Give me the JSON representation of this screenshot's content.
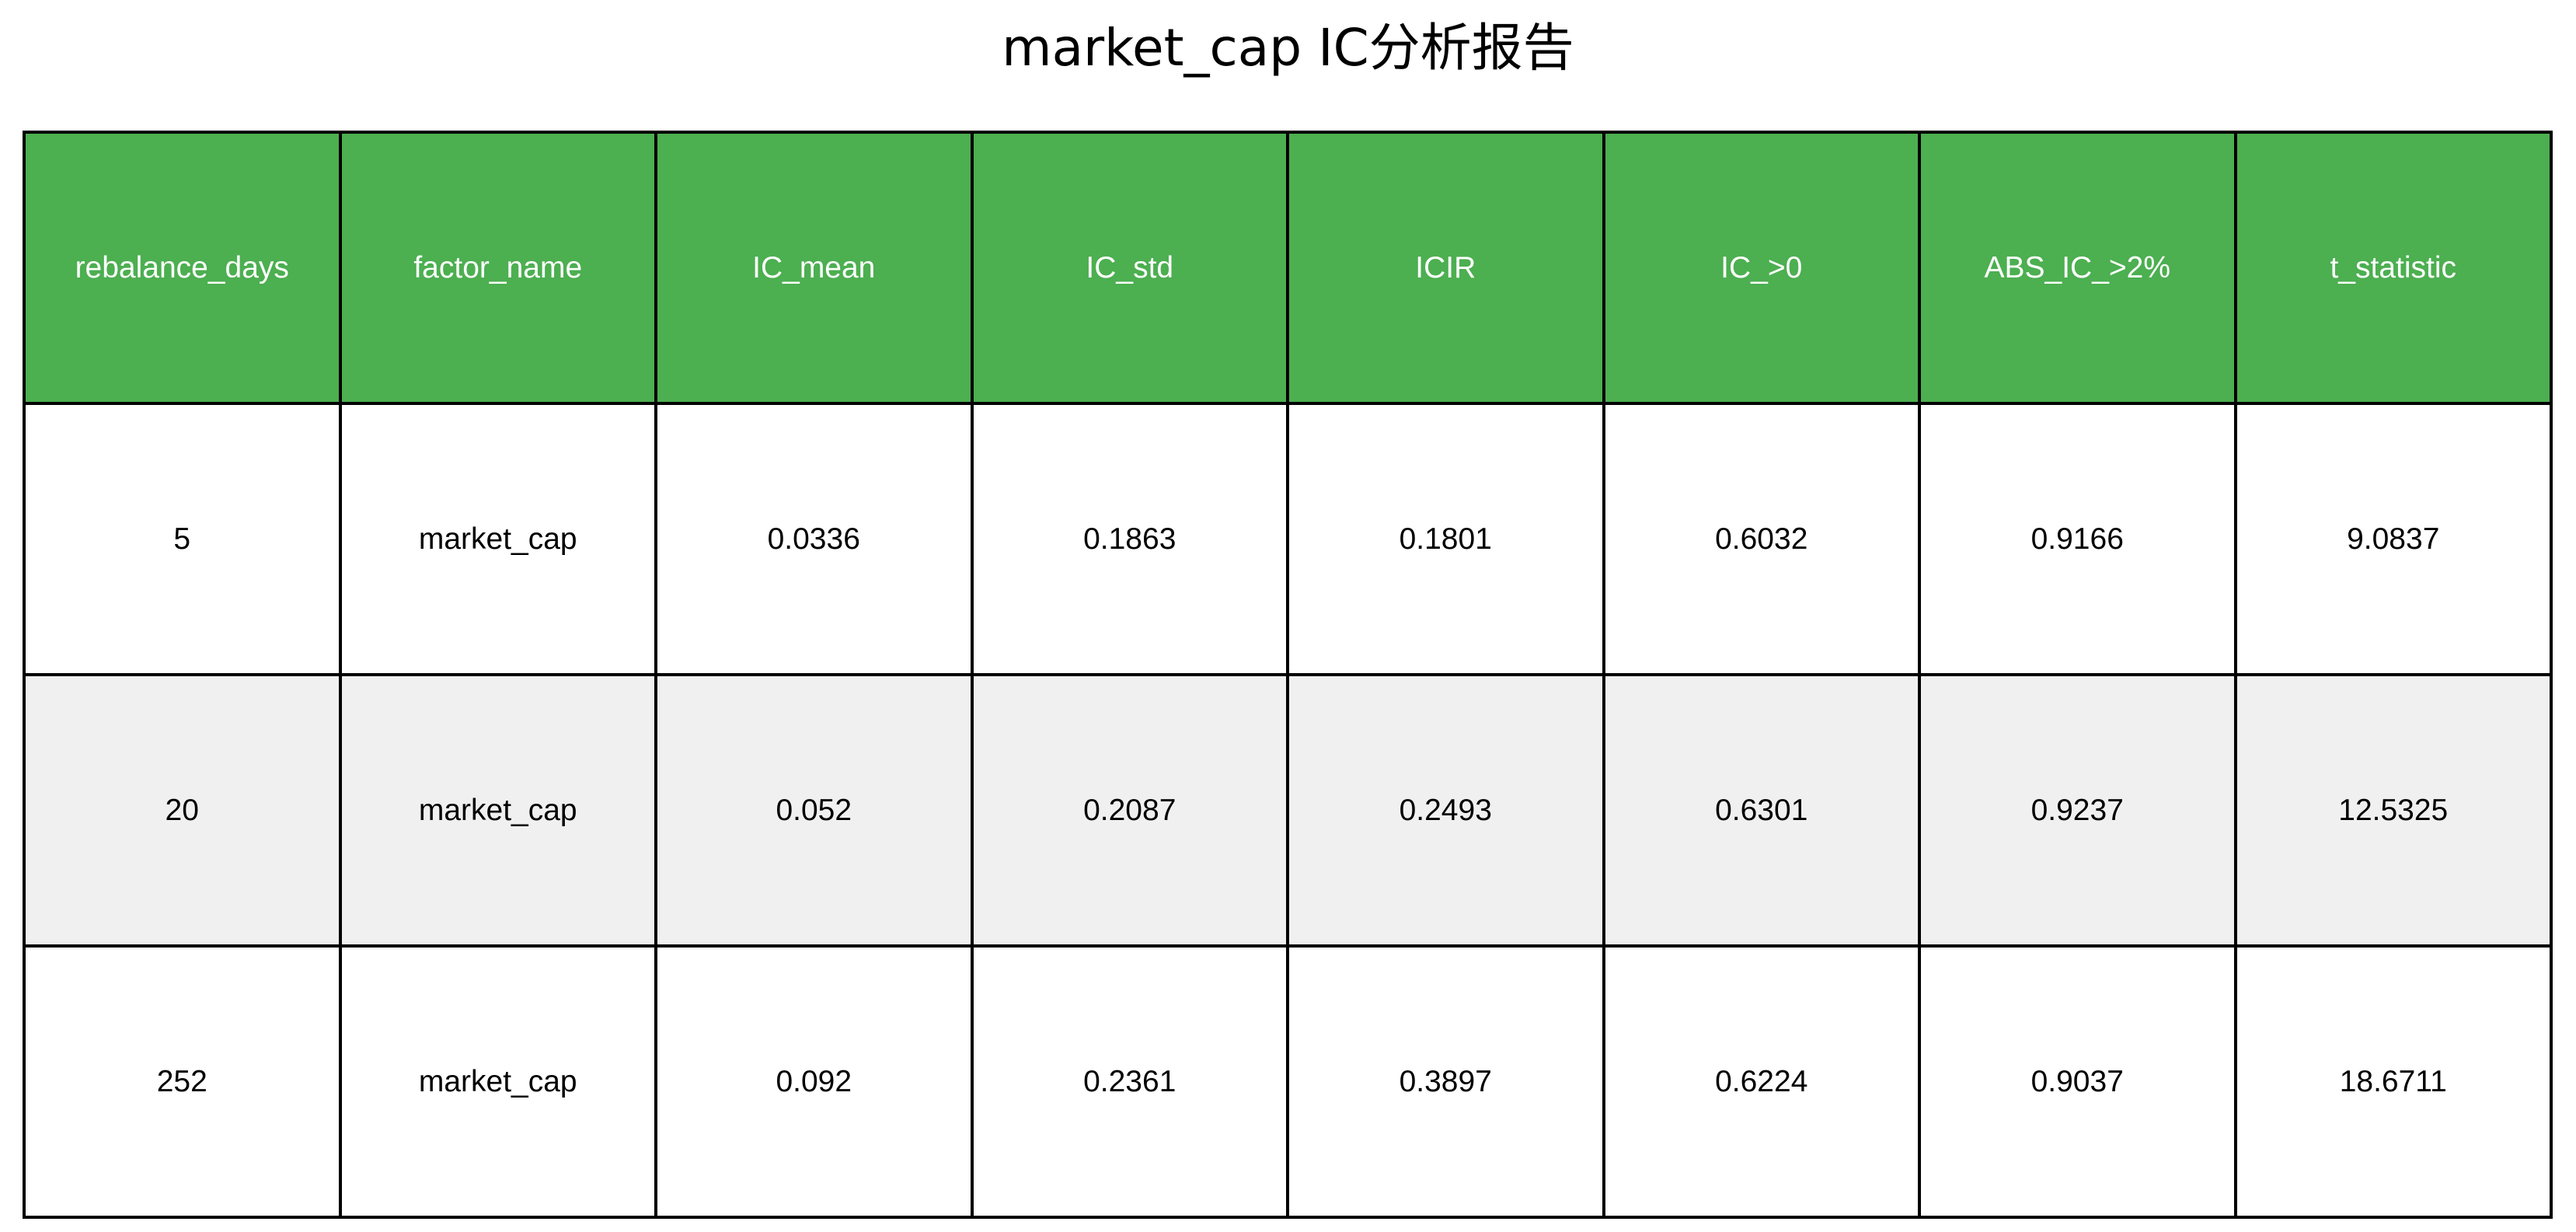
{
  "title": "market_cap IC分析报告",
  "colors": {
    "header_bg": "#4caf50",
    "header_text": "#ffffff",
    "row_alt_bg": "#f0f0f0",
    "row_bg": "#ffffff",
    "border": "#000000"
  },
  "chart_data": {
    "type": "table",
    "title": "market_cap IC分析报告",
    "columns": [
      "rebalance_days",
      "factor_name",
      "IC_mean",
      "IC_std",
      "ICIR",
      "IC_>0",
      "ABS_IC_>2%",
      "t_statistic"
    ],
    "rows": [
      [
        "5",
        "market_cap",
        "0.0336",
        "0.1863",
        "0.1801",
        "0.6032",
        "0.9166",
        "9.0837"
      ],
      [
        "20",
        "market_cap",
        "0.052",
        "0.2087",
        "0.2493",
        "0.6301",
        "0.9237",
        "12.5325"
      ],
      [
        "252",
        "market_cap",
        "0.092",
        "0.2361",
        "0.3897",
        "0.6224",
        "0.9037",
        "18.6711"
      ]
    ]
  }
}
